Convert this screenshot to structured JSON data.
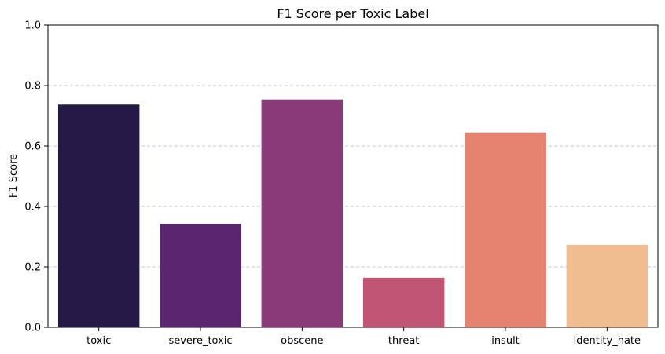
{
  "chart_data": {
    "type": "bar",
    "title": "F1 Score per Toxic Label",
    "xlabel": "",
    "ylabel": "F1 Score",
    "categories": [
      "toxic",
      "severe_toxic",
      "obscene",
      "threat",
      "insult",
      "identity_hate"
    ],
    "values": [
      0.737,
      0.343,
      0.754,
      0.164,
      0.645,
      0.273
    ],
    "colors": [
      "#251a47",
      "#5b2570",
      "#8a3a78",
      "#c05573",
      "#e58370",
      "#f0bd91"
    ],
    "ylim": [
      0,
      1.0
    ],
    "yticks": [
      "0.0",
      "0.2",
      "0.4",
      "0.6",
      "0.8",
      "1.0"
    ],
    "grid": "horizontal-dashed",
    "legend": "none"
  }
}
